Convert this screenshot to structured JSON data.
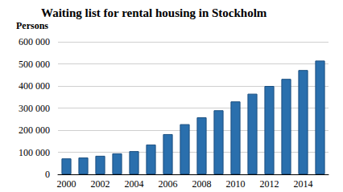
{
  "chart_data": {
    "type": "bar",
    "title": "Waiting list for rental housing in Stockholm",
    "ylabel": "Persons",
    "categories": [
      "2000",
      null,
      "2002",
      null,
      "2004",
      null,
      "2006",
      null,
      "2008",
      null,
      "2010",
      null,
      "2012",
      null,
      "2014",
      null
    ],
    "values": [
      72000,
      76000,
      84000,
      95000,
      105000,
      135000,
      182000,
      227000,
      258000,
      290000,
      330000,
      365000,
      400000,
      432000,
      472000,
      515000
    ],
    "color": "#2a6fad",
    "ylim": [
      0,
      600000
    ],
    "yticks": [
      0,
      {
        "value": 100000,
        "label": "100 000"
      },
      {
        "value": 200000,
        "label": "200 000"
      },
      {
        "value": 300000,
        "label": "300 000"
      },
      {
        "value": 400000,
        "label": "400 000"
      },
      {
        "value": 500000,
        "label": "500 000"
      },
      {
        "value": 600000,
        "label": "600 000"
      }
    ],
    "grid": true
  }
}
